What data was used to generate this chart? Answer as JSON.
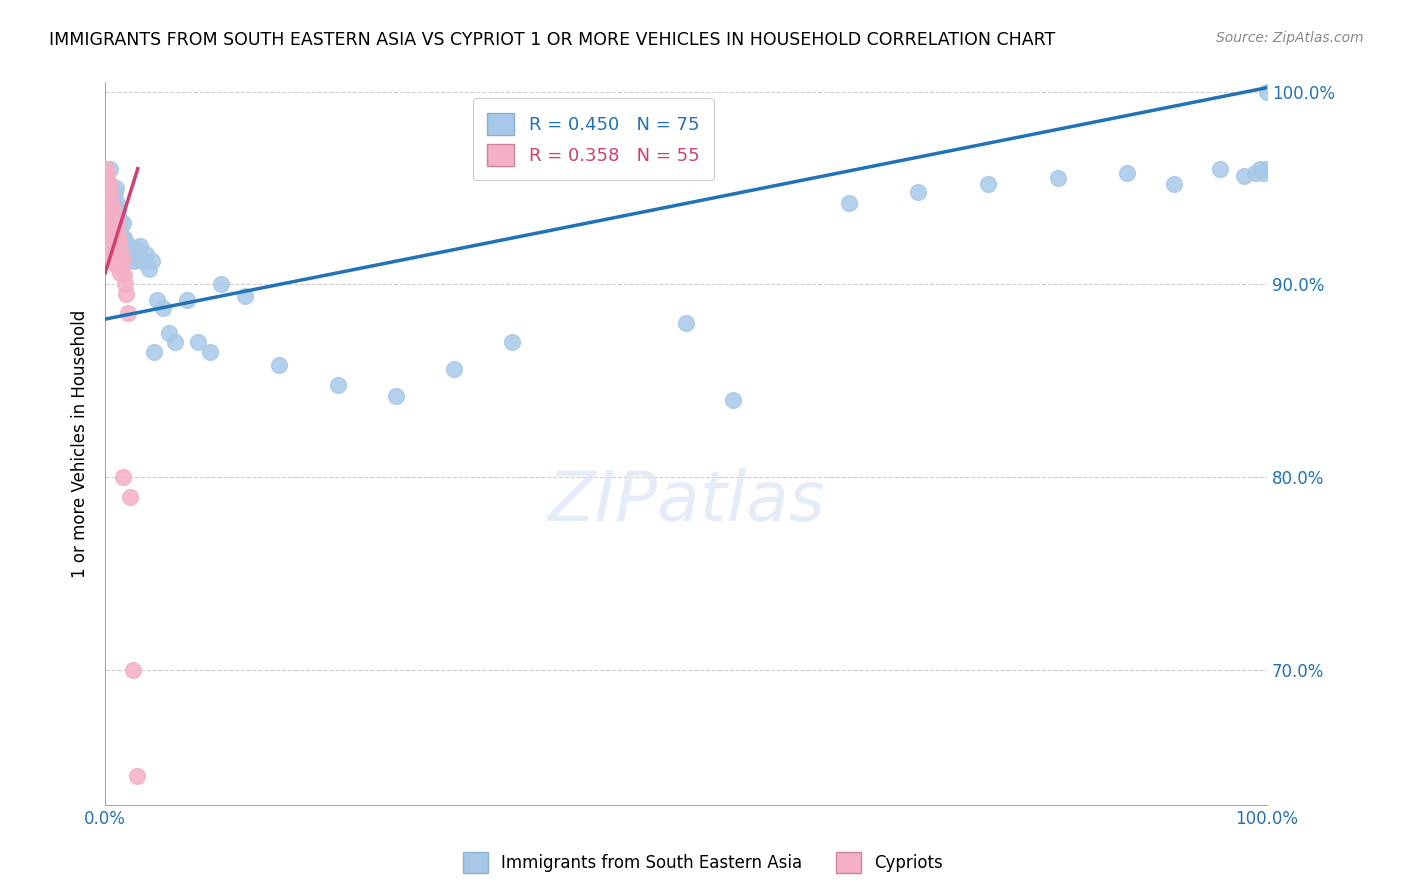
{
  "title": "IMMIGRANTS FROM SOUTH EASTERN ASIA VS CYPRIOT 1 OR MORE VEHICLES IN HOUSEHOLD CORRELATION CHART",
  "source": "Source: ZipAtlas.com",
  "ylabel": "1 or more Vehicles in Household",
  "legend_blue_label": "Immigrants from South Eastern Asia",
  "legend_pink_label": "Cypriots",
  "blue_R": 0.45,
  "blue_N": 75,
  "pink_R": 0.358,
  "pink_N": 55,
  "blue_color": "#a8c8e8",
  "blue_line_color": "#2272b5",
  "pink_color": "#f4b0c4",
  "pink_line_color": "#d04070",
  "ylim_min": 0.63,
  "ylim_max": 1.005,
  "xlim_min": 0.0,
  "xlim_max": 1.0,
  "ytick_values": [
    0.7,
    0.8,
    0.9,
    1.0
  ],
  "ytick_labels": [
    "70.0%",
    "80.0%",
    "90.0%",
    "100.0%"
  ],
  "blue_x": [
    0.003,
    0.004,
    0.004,
    0.005,
    0.005,
    0.006,
    0.006,
    0.006,
    0.007,
    0.007,
    0.008,
    0.008,
    0.008,
    0.009,
    0.009,
    0.009,
    0.01,
    0.01,
    0.01,
    0.011,
    0.011,
    0.012,
    0.012,
    0.013,
    0.013,
    0.014,
    0.014,
    0.015,
    0.015,
    0.016,
    0.017,
    0.018,
    0.019,
    0.02,
    0.021,
    0.022,
    0.024,
    0.025,
    0.026,
    0.028,
    0.03,
    0.032,
    0.035,
    0.038,
    0.04,
    0.042,
    0.045,
    0.05,
    0.055,
    0.06,
    0.07,
    0.08,
    0.09,
    0.1,
    0.12,
    0.15,
    0.2,
    0.25,
    0.3,
    0.35,
    0.5,
    0.54,
    0.64,
    0.7,
    0.76,
    0.82,
    0.88,
    0.92,
    0.96,
    0.98,
    0.99,
    0.994,
    0.997,
    0.999,
    1.0
  ],
  "blue_y": [
    0.952,
    0.944,
    0.96,
    0.94,
    0.932,
    0.946,
    0.936,
    0.925,
    0.944,
    0.93,
    0.948,
    0.938,
    0.924,
    0.95,
    0.94,
    0.928,
    0.942,
    0.932,
    0.92,
    0.938,
    0.926,
    0.934,
    0.922,
    0.93,
    0.918,
    0.926,
    0.915,
    0.932,
    0.92,
    0.924,
    0.918,
    0.922,
    0.912,
    0.92,
    0.915,
    0.918,
    0.915,
    0.912,
    0.916,
    0.918,
    0.92,
    0.912,
    0.916,
    0.908,
    0.912,
    0.865,
    0.892,
    0.888,
    0.875,
    0.87,
    0.892,
    0.87,
    0.865,
    0.9,
    0.894,
    0.858,
    0.848,
    0.842,
    0.856,
    0.87,
    0.88,
    0.84,
    0.942,
    0.948,
    0.952,
    0.955,
    0.958,
    0.952,
    0.96,
    0.956,
    0.958,
    0.96,
    0.958,
    0.96,
    1.0
  ],
  "pink_x": [
    0.0005,
    0.0008,
    0.001,
    0.001,
    0.0012,
    0.0015,
    0.002,
    0.002,
    0.002,
    0.0025,
    0.003,
    0.003,
    0.003,
    0.003,
    0.0035,
    0.004,
    0.004,
    0.004,
    0.004,
    0.005,
    0.005,
    0.005,
    0.005,
    0.006,
    0.006,
    0.006,
    0.006,
    0.007,
    0.007,
    0.007,
    0.008,
    0.008,
    0.008,
    0.009,
    0.009,
    0.009,
    0.01,
    0.01,
    0.01,
    0.011,
    0.011,
    0.012,
    0.012,
    0.013,
    0.013,
    0.014,
    0.015,
    0.015,
    0.016,
    0.017,
    0.018,
    0.02,
    0.021,
    0.024,
    0.027
  ],
  "pink_y": [
    0.958,
    0.952,
    0.96,
    0.945,
    0.948,
    0.955,
    0.95,
    0.942,
    0.935,
    0.948,
    0.952,
    0.944,
    0.936,
    0.928,
    0.942,
    0.948,
    0.94,
    0.932,
    0.922,
    0.942,
    0.936,
    0.928,
    0.918,
    0.94,
    0.932,
    0.924,
    0.914,
    0.938,
    0.928,
    0.918,
    0.932,
    0.922,
    0.912,
    0.93,
    0.92,
    0.91,
    0.932,
    0.922,
    0.912,
    0.925,
    0.914,
    0.922,
    0.91,
    0.918,
    0.906,
    0.915,
    0.912,
    0.8,
    0.905,
    0.9,
    0.895,
    0.885,
    0.79,
    0.7,
    0.645
  ],
  "blue_trend_x": [
    0.0,
    1.0
  ],
  "blue_trend_y": [
    0.882,
    1.002
  ],
  "pink_trend_x": [
    0.0,
    0.028
  ],
  "pink_trend_y": [
    0.906,
    0.96
  ]
}
